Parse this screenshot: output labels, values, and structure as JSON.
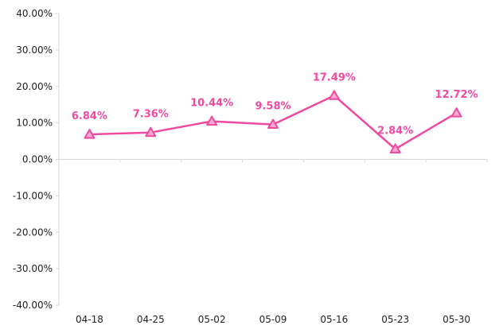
{
  "chart_data": {
    "type": "line",
    "title": "",
    "xlabel": "",
    "ylabel": "",
    "categories": [
      "04-18",
      "04-25",
      "05-02",
      "05-09",
      "05-16",
      "05-23",
      "05-30"
    ],
    "series": [
      {
        "values": [
          6.84,
          7.36,
          10.44,
          9.58,
          17.49,
          2.84,
          12.72
        ],
        "labels": [
          "6.84%",
          "7.36%",
          "10.44%",
          "9.58%",
          "17.49%",
          "2.84%",
          "12.72%"
        ],
        "color": "#ee4aa0",
        "marker": "triangle"
      }
    ],
    "ylim": [
      -40,
      40
    ],
    "yticks": [
      40,
      30,
      20,
      10,
      0,
      -10,
      -20,
      -30,
      -40
    ],
    "ytick_labels": [
      "40.00%",
      "30.00%",
      "20.00%",
      "10.00%",
      "0.00%",
      "-10.00%",
      "-20.00%",
      "-30.00%",
      "-40.00%"
    ],
    "grid": false,
    "legend": "none",
    "axis_color": "#d9d9d9"
  }
}
